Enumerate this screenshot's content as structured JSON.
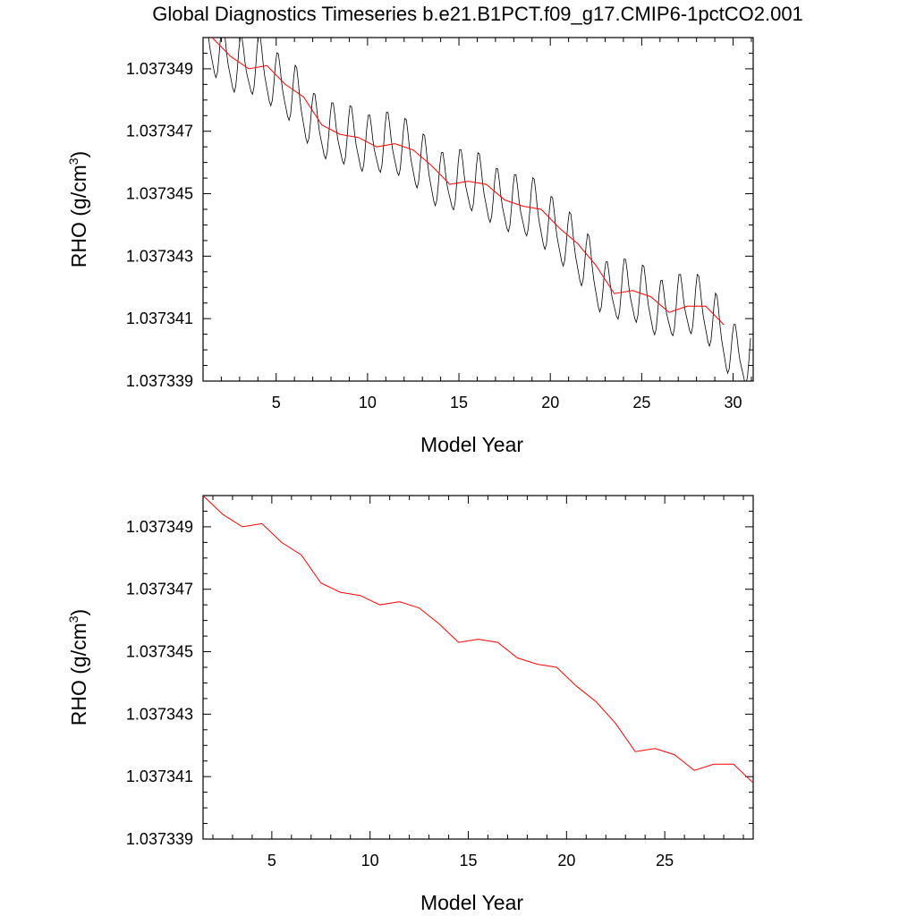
{
  "figure_title": "Global Diagnostics Timeseries b.e21.B1PCT.f09_g17.CMIP6-1pctCO2.001",
  "chart_data": [
    {
      "type": "line",
      "xlabel": "Model Year",
      "ylabel_main": "RHO (g/cm",
      "ylabel_sup": "3",
      "ylabel_close": ")",
      "xlim": [
        1.0,
        31.1
      ],
      "ylim": [
        1.037339,
        1.03735
      ],
      "x_ticks": [
        5,
        10,
        15,
        20,
        25,
        30
      ],
      "x_tick_labels": [
        "5",
        "10",
        "15",
        "20",
        "25",
        "30"
      ],
      "y_ticks": [
        1.037339,
        1.037341,
        1.037343,
        1.037345,
        1.037347,
        1.037349
      ],
      "y_tick_labels": [
        "1.037339",
        "1.037341",
        "1.037343",
        "1.037345",
        "1.037347",
        "1.037349"
      ],
      "series": [
        {
          "color": "#000000",
          "style": "monthly",
          "x_start": 1.04,
          "x_step": 0.08333,
          "seasonal_amplitude": 9e-07,
          "values_note_free": true,
          "annual_means": [
            1.03735,
            1.0373494,
            1.037349,
            1.0373491,
            1.0373485,
            1.0373481,
            1.0373472,
            1.0373469,
            1.0373468,
            1.0373465,
            1.0373466,
            1.0373464,
            1.0373459,
            1.0373453,
            1.0373454,
            1.0373453,
            1.0373448,
            1.0373446,
            1.0373445,
            1.0373439,
            1.0373434,
            1.0373427,
            1.0373418,
            1.0373419,
            1.0373417,
            1.0373412,
            1.0373414,
            1.0373414,
            1.0373408,
            1.0373398
          ]
        },
        {
          "color": "#ff0000",
          "style": "annual",
          "x": [
            1.5,
            2.5,
            3.5,
            4.5,
            5.5,
            6.5,
            7.5,
            8.5,
            9.5,
            10.5,
            11.5,
            12.5,
            13.5,
            14.5,
            15.5,
            16.5,
            17.5,
            18.5,
            19.5,
            20.5,
            21.5,
            22.5,
            23.5,
            24.5,
            25.5,
            26.5,
            27.5,
            28.5,
            29.5
          ],
          "y": [
            1.03735,
            1.0373494,
            1.037349,
            1.0373491,
            1.0373485,
            1.0373481,
            1.0373472,
            1.0373469,
            1.0373468,
            1.0373465,
            1.0373466,
            1.0373464,
            1.0373459,
            1.0373453,
            1.0373454,
            1.0373453,
            1.0373448,
            1.0373446,
            1.0373445,
            1.0373439,
            1.0373434,
            1.0373427,
            1.0373418,
            1.0373419,
            1.0373417,
            1.0373412,
            1.0373414,
            1.0373414,
            1.0373408
          ]
        }
      ]
    },
    {
      "type": "line",
      "xlabel": "Model Year",
      "ylabel_main": "RHO (g/cm",
      "ylabel_sup": "3",
      "ylabel_close": ")",
      "xlim": [
        1.5,
        29.5
      ],
      "ylim": [
        1.037339,
        1.03735
      ],
      "x_ticks": [
        5,
        10,
        15,
        20,
        25
      ],
      "x_tick_labels": [
        "5",
        "10",
        "15",
        "20",
        "25"
      ],
      "y_ticks": [
        1.037339,
        1.037341,
        1.037343,
        1.037345,
        1.037347,
        1.037349
      ],
      "y_tick_labels": [
        "1.037339",
        "1.037341",
        "1.037343",
        "1.037345",
        "1.037347",
        "1.037349"
      ],
      "series": [
        {
          "color": "#ff0000",
          "style": "annual",
          "x": [
            1.5,
            2.5,
            3.5,
            4.5,
            5.5,
            6.5,
            7.5,
            8.5,
            9.5,
            10.5,
            11.5,
            12.5,
            13.5,
            14.5,
            15.5,
            16.5,
            17.5,
            18.5,
            19.5,
            20.5,
            21.5,
            22.5,
            23.5,
            24.5,
            25.5,
            26.5,
            27.5,
            28.5,
            29.5
          ],
          "y": [
            1.03735,
            1.0373494,
            1.037349,
            1.0373491,
            1.0373485,
            1.0373481,
            1.0373472,
            1.0373469,
            1.0373468,
            1.0373465,
            1.0373466,
            1.0373464,
            1.0373459,
            1.0373453,
            1.0373454,
            1.0373453,
            1.0373448,
            1.0373446,
            1.0373445,
            1.0373439,
            1.0373434,
            1.0373427,
            1.0373418,
            1.0373419,
            1.0373417,
            1.0373412,
            1.0373414,
            1.0373414,
            1.0373408
          ]
        }
      ]
    }
  ]
}
